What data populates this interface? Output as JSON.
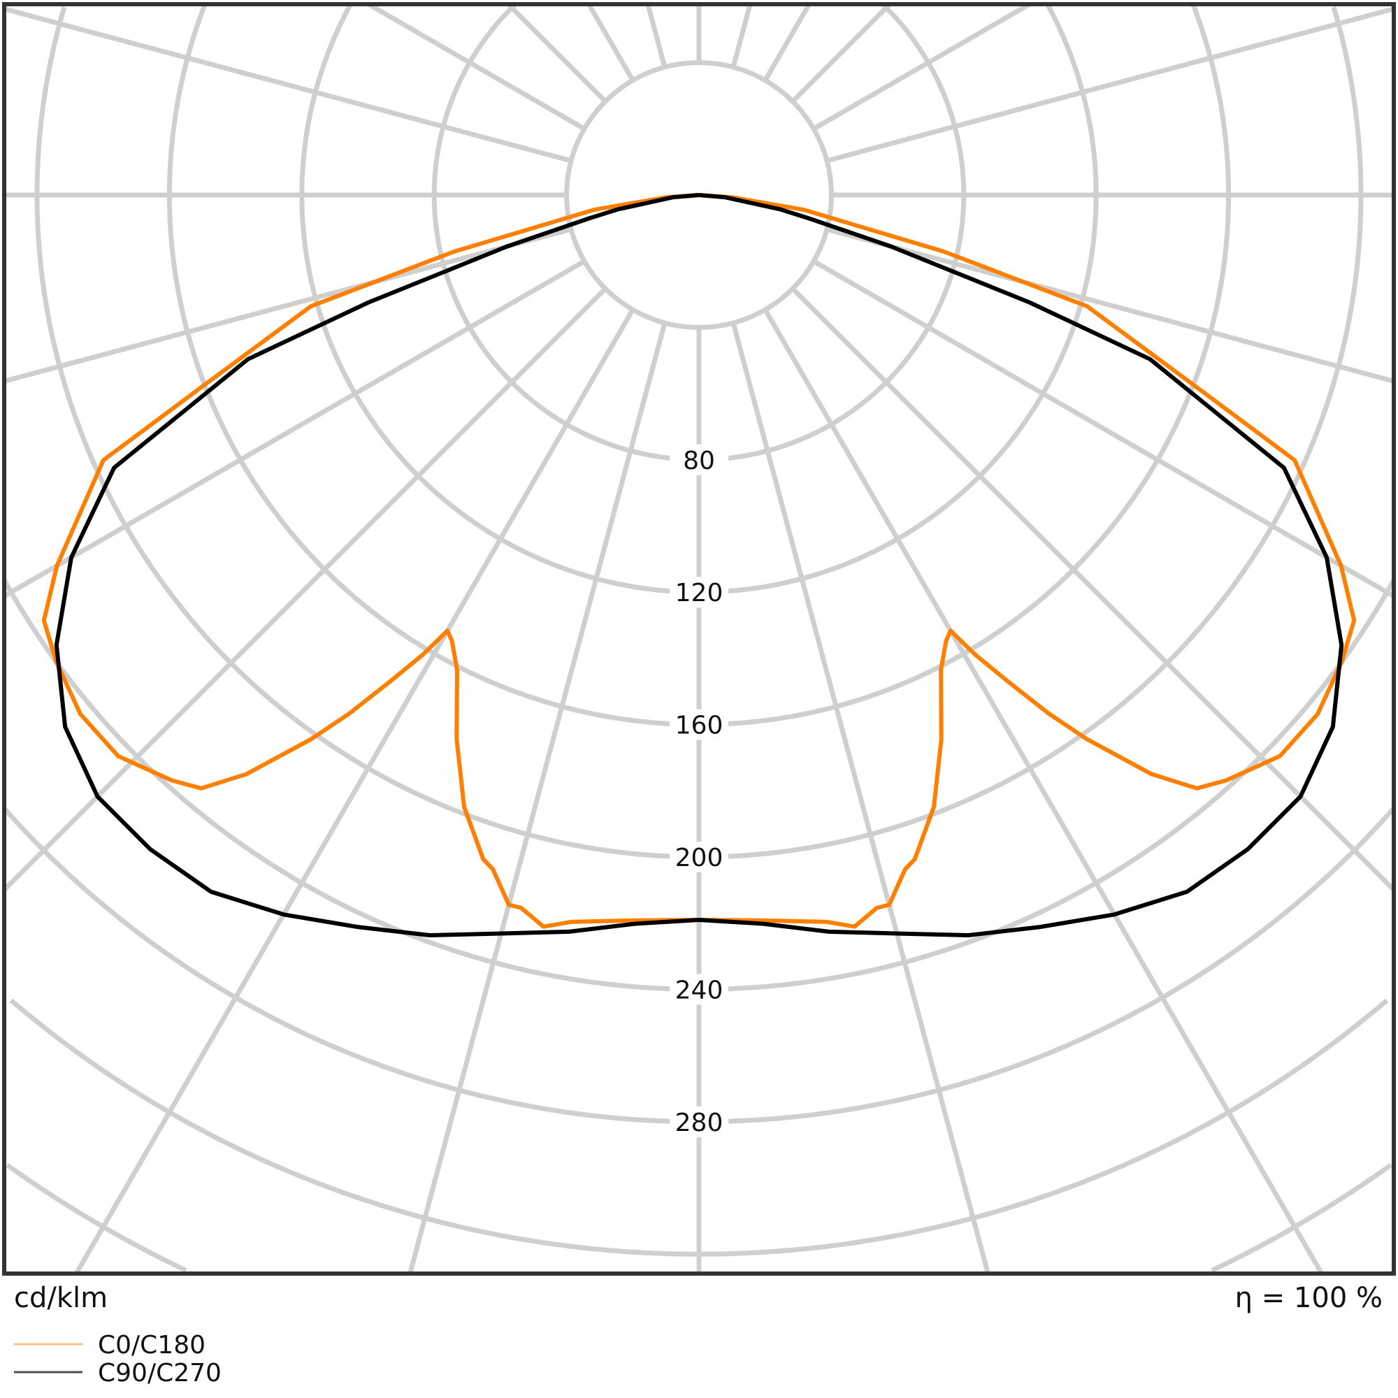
{
  "chart_data": {
    "type": "polar-line",
    "unit_label": "cd/klm",
    "efficiency_label": "η = 100 %",
    "radial_ticks": [
      80,
      120,
      160,
      200,
      240,
      280
    ],
    "ring_step": 40,
    "angle_step_deg": 15,
    "grid": true,
    "legend_placement": "bottom-left",
    "series": [
      {
        "name": "C0/C180",
        "color": "#ff8000",
        "gamma": [
          0,
          5,
          10,
          12,
          14,
          15,
          17,
          18,
          21,
          24,
          27,
          29,
          30,
          31,
          32.4,
          34,
          35.5,
          38,
          40,
          42,
          46,
          50,
          54,
          57,
          60,
          66,
          69,
          74,
          77,
          82,
          86,
          90
        ],
        "values": [
          219,
          220,
          223,
          226,
          222,
          222,
          213,
          211,
          198,
          180,
          161,
          154,
          152,
          162,
          174,
          189,
          202,
          222,
          234,
          238,
          244,
          244,
          240,
          236,
          224,
          197,
          160,
          122,
          76,
          32,
          10,
          0
        ]
      },
      {
        "name": "C90/C270",
        "color": "#000000",
        "gamma": [
          0,
          5,
          10,
          15,
          20,
          25,
          30,
          35,
          40,
          45,
          50,
          55,
          60,
          65,
          70,
          72,
          75,
          78,
          80,
          85,
          90
        ],
        "values": [
          219,
          221,
          226,
          231,
          238,
          244,
          251,
          257,
          258,
          257,
          250,
          237,
          219,
          195,
          145,
          105,
          60,
          34,
          25,
          8,
          0
        ]
      }
    ]
  }
}
